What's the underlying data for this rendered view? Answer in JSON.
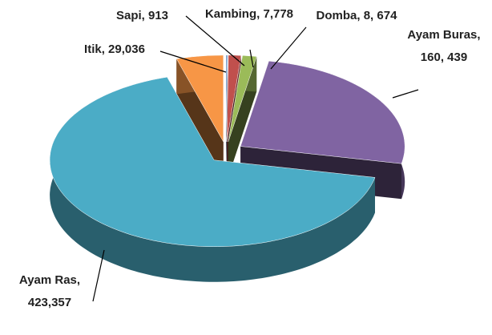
{
  "chart_data": {
    "type": "pie",
    "categories": [
      "Sapi",
      "Kambing",
      "Domba",
      "Ayam Buras",
      "Ayam Ras",
      "Itik"
    ],
    "values": [
      913,
      7778,
      8674,
      160439,
      423357,
      29036
    ],
    "value_labels": [
      "Sapi, 913",
      "Kambing, 7,778",
      "Domba, 8, 674",
      "Ayam Buras, 160, 439",
      "Ayam Ras, 423,357",
      "Itik, 29,036"
    ],
    "colors": [
      "#4f81bd",
      "#c0504d",
      "#9bbb59",
      "#8064a2",
      "#4bacc6",
      "#f79646"
    ]
  }
}
